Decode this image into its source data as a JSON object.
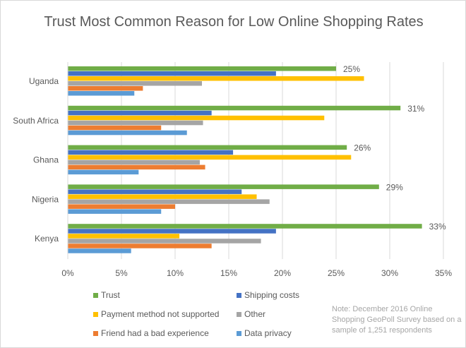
{
  "chart_data": {
    "type": "bar",
    "orientation": "horizontal",
    "title": "Trust Most Common Reason for Low Online Shopping Rates",
    "categories": [
      "Uganda",
      "South Africa",
      "Ghana",
      "Nigeria",
      "Kenya"
    ],
    "xlim": [
      0,
      35
    ],
    "x_ticks": [
      "0%",
      "5%",
      "10%",
      "15%",
      "20%",
      "25%",
      "30%",
      "35%"
    ],
    "grid": true,
    "legend_placement": "bottom",
    "series": [
      {
        "name": "Trust",
        "color": "#70ad47",
        "values": [
          25,
          31,
          26,
          29,
          33
        ],
        "labels": [
          "25%",
          "31%",
          "26%",
          "29%",
          "33%"
        ]
      },
      {
        "name": "Shipping costs",
        "color": "#4472c4",
        "values": [
          19.4,
          13.4,
          15.4,
          16.2,
          19.4
        ]
      },
      {
        "name": "Payment method not supported",
        "color": "#ffc000",
        "values": [
          27.6,
          23.9,
          26.4,
          17.6,
          10.4
        ]
      },
      {
        "name": "Other",
        "color": "#a5a5a5",
        "values": [
          12.5,
          12.6,
          12.3,
          18.8,
          18
        ]
      },
      {
        "name": "Friend had a bad experience",
        "color": "#ed7d31",
        "values": [
          7,
          8.7,
          12.8,
          10,
          13.4
        ]
      },
      {
        "name": "Data privacy",
        "color": "#5b9bd5",
        "values": [
          6.2,
          11.1,
          6.6,
          8.7,
          5.9
        ]
      }
    ],
    "note": "Note: December 2016 Online Shopping  GeoPoll Survey based on a sample of 1,251 respondents"
  }
}
